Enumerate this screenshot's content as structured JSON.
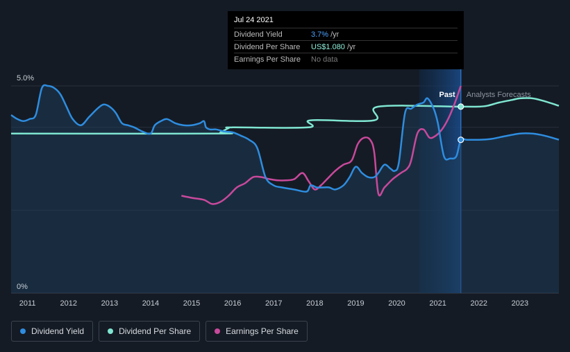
{
  "colors": {
    "dividend_yield": "#2e8de0",
    "dividend_per_share": "#7fe6d2",
    "earnings_per_share": "#c9499c",
    "background": "#151b24",
    "forecast_band": "#0f2a4a"
  },
  "tooltip": {
    "date": "Jul 24 2021",
    "rows": [
      {
        "label": "Dividend Yield",
        "value": "3.7%",
        "unit": "/yr"
      },
      {
        "label": "Dividend Per Share",
        "value": "US$1.080",
        "unit": "/yr"
      },
      {
        "label": "Earnings Per Share",
        "value": "No data",
        "unit": ""
      }
    ]
  },
  "chart_labels": {
    "past": "Past",
    "forecast": "Analysts Forecasts"
  },
  "legend": [
    {
      "label": "Dividend Yield",
      "color": "#2e8de0"
    },
    {
      "label": "Dividend Per Share",
      "color": "#7fe6d2"
    },
    {
      "label": "Earnings Per Share",
      "color": "#c9499c"
    }
  ],
  "chart_data": {
    "type": "line",
    "title": "",
    "xlabel": "",
    "ylabel": "",
    "x_ticks": [
      "2011",
      "2012",
      "2013",
      "2014",
      "2015",
      "2016",
      "2017",
      "2018",
      "2019",
      "2020",
      "2021",
      "2022",
      "2023"
    ],
    "y_ticks": [
      "0%",
      "5.0%"
    ],
    "xlim": [
      2010.6,
      2023.95
    ],
    "ylim": [
      0,
      5.0
    ],
    "grid": true,
    "past_forecast_divider": 2021.56,
    "series": [
      {
        "name": "Dividend Yield",
        "x": [
          2010.6,
          2010.75,
          2010.9,
          2011.05,
          2011.2,
          2011.35,
          2011.5,
          2011.65,
          2011.8,
          2011.95,
          2012.1,
          2012.3,
          2012.5,
          2012.7,
          2012.85,
          2013.0,
          2013.15,
          2013.3,
          2013.45,
          2013.6,
          2013.8,
          2014.0,
          2014.1,
          2014.25,
          2014.4,
          2014.6,
          2014.8,
          2015.0,
          2015.2,
          2015.3,
          2015.35,
          2015.45,
          2015.6,
          2015.8,
          2016.0,
          2016.2,
          2016.4,
          2016.6,
          2016.8,
          2017.0,
          2017.2,
          2017.5,
          2017.8,
          2017.9,
          2018.05,
          2018.2,
          2018.35,
          2018.5,
          2018.7,
          2018.85,
          2019.0,
          2019.15,
          2019.3,
          2019.45,
          2019.55,
          2019.7,
          2019.85,
          2019.95,
          2020.05,
          2020.2,
          2020.35,
          2020.5,
          2020.65,
          2020.75,
          2020.9,
          2021.0,
          2021.15,
          2021.3,
          2021.45,
          2021.56,
          2021.7,
          2022.0,
          2022.3,
          2022.6,
          2023.0,
          2023.3,
          2023.6,
          2023.95
        ],
        "values": [
          4.3,
          4.2,
          4.15,
          4.2,
          4.3,
          4.95,
          5.0,
          4.95,
          4.8,
          4.5,
          4.2,
          4.05,
          4.25,
          4.45,
          4.55,
          4.5,
          4.35,
          4.1,
          4.05,
          4.0,
          3.9,
          3.85,
          4.05,
          4.15,
          4.2,
          4.1,
          4.05,
          4.05,
          4.1,
          4.15,
          4.0,
          3.95,
          3.95,
          3.9,
          3.88,
          3.8,
          3.7,
          3.5,
          2.8,
          2.6,
          2.55,
          2.5,
          2.45,
          2.6,
          2.55,
          2.55,
          2.55,
          2.5,
          2.6,
          2.8,
          3.05,
          2.9,
          2.8,
          2.8,
          2.9,
          3.1,
          3.0,
          2.95,
          3.15,
          4.35,
          4.45,
          4.55,
          4.6,
          4.7,
          4.45,
          4.1,
          3.3,
          3.25,
          3.3,
          3.7,
          3.7,
          3.7,
          3.72,
          3.78,
          3.85,
          3.85,
          3.8,
          3.7
        ]
      },
      {
        "name": "Dividend Per Share",
        "x": [
          2010.6,
          2015.6,
          2015.7,
          2015.9,
          2016.0,
          2017.85,
          2017.9,
          2019.45,
          2019.55,
          2021.56,
          2022.0,
          2022.2,
          2022.5,
          2022.8,
          2023.0,
          2023.3,
          2023.6,
          2023.95
        ],
        "values": [
          3.85,
          3.85,
          3.88,
          3.98,
          4.0,
          4.0,
          4.17,
          4.17,
          4.5,
          4.5,
          4.5,
          4.52,
          4.6,
          4.66,
          4.7,
          4.7,
          4.63,
          4.52
        ]
      },
      {
        "name": "Earnings Per Share",
        "x": [
          2014.75,
          2015.0,
          2015.3,
          2015.5,
          2015.7,
          2015.9,
          2016.1,
          2016.3,
          2016.5,
          2016.7,
          2016.9,
          2017.1,
          2017.3,
          2017.5,
          2017.7,
          2017.85,
          2018.0,
          2018.15,
          2018.3,
          2018.5,
          2018.7,
          2018.9,
          2019.05,
          2019.2,
          2019.35,
          2019.45,
          2019.55,
          2019.7,
          2019.9,
          2020.1,
          2020.25,
          2020.35,
          2020.5,
          2020.65,
          2020.8,
          2020.95,
          2021.1,
          2021.25,
          2021.4,
          2021.56
        ],
        "values": [
          2.35,
          2.3,
          2.25,
          2.15,
          2.2,
          2.35,
          2.55,
          2.65,
          2.8,
          2.8,
          2.75,
          2.72,
          2.72,
          2.75,
          2.9,
          2.7,
          2.5,
          2.6,
          2.75,
          2.95,
          3.1,
          3.2,
          3.6,
          3.75,
          3.7,
          3.4,
          2.4,
          2.55,
          2.75,
          2.9,
          3.0,
          3.2,
          3.85,
          3.95,
          3.75,
          3.8,
          3.95,
          4.2,
          4.55,
          5.0
        ]
      }
    ],
    "highlight_points": [
      {
        "series": "Dividend Yield",
        "x": 2021.56,
        "value": 3.7
      },
      {
        "series": "Dividend Per Share",
        "x": 2021.56,
        "value": 4.5
      }
    ]
  }
}
